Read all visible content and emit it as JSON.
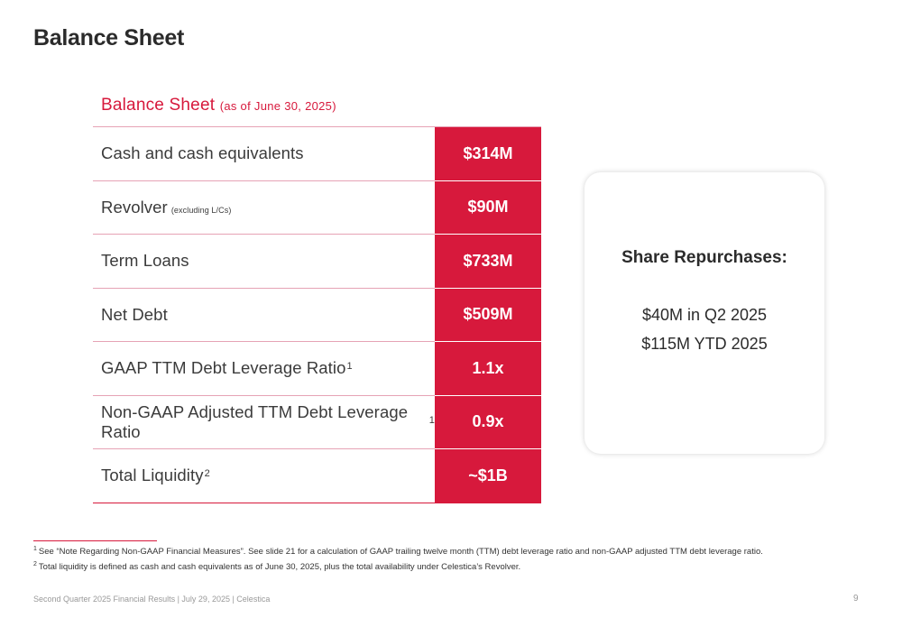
{
  "title": "Balance Sheet",
  "table": {
    "heading": "Balance Sheet",
    "heading_sub": "(as of June 30, 2025)",
    "rows": [
      {
        "label": "Cash and cash equivalents",
        "note": "",
        "sup": "",
        "value": "$314M"
      },
      {
        "label": "Revolver",
        "note": "(excluding L/Cs)",
        "sup": "",
        "value": "$90M"
      },
      {
        "label": "Term Loans",
        "note": "",
        "sup": "",
        "value": "$733M"
      },
      {
        "label": "Net Debt",
        "note": "",
        "sup": "",
        "value": "$509M"
      },
      {
        "label": "GAAP TTM Debt Leverage Ratio",
        "note": "",
        "sup": "1",
        "value": "1.1x"
      },
      {
        "label": "Non-GAAP Adjusted TTM Debt Leverage Ratio",
        "note": "",
        "sup": "1",
        "value": "0.9x"
      },
      {
        "label": "Total Liquidity",
        "note": "",
        "sup": "2",
        "value": "~$1B"
      }
    ]
  },
  "repurchases": {
    "title": "Share Repurchases:",
    "line1": "$40M in Q2 2025",
    "line2": "$115M YTD 2025"
  },
  "footnotes": [
    {
      "num": "1",
      "text": "See “Note Regarding Non-GAAP Financial Measures”. See slide 21 for a calculation of GAAP trailing twelve month (TTM) debt leverage ratio and non-GAAP adjusted TTM debt leverage ratio."
    },
    {
      "num": "2",
      "text": "Total liquidity is defined as cash and cash equivalents as of June 30, 2025, plus the total availability under Celestica’s Revolver."
    }
  ],
  "footer": {
    "text": "Second Quarter 2025 Financial Results |  July 29, 2025  |  Celestica",
    "page_number": "9"
  },
  "colors": {
    "accent": "#d7193c",
    "row_divider": "#e6a3b5",
    "text": "#333333"
  }
}
